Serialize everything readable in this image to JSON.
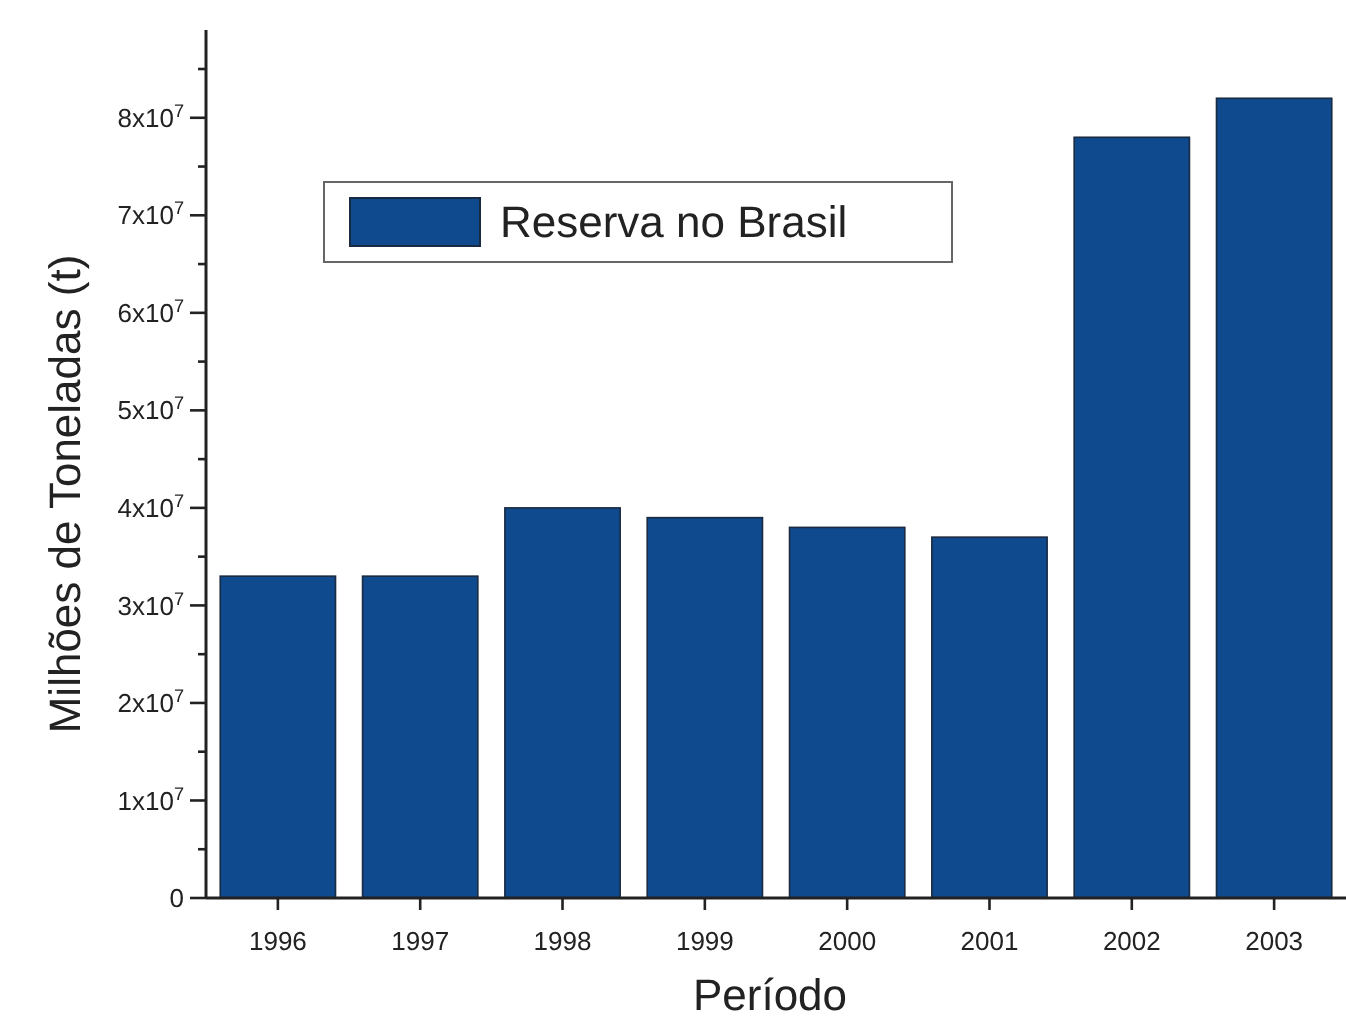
{
  "chart_data": {
    "type": "bar",
    "xlabel": "Período",
    "ylabel": "Milhões de Toneladas (t)",
    "categories": [
      "1996",
      "1997",
      "1998",
      "1999",
      "2000",
      "2001",
      "2002",
      "2003"
    ],
    "series": [
      {
        "name": "Reserva no Brasil",
        "color": "#0f4a8f",
        "values": [
          33000000,
          33000000,
          40000000,
          39000000,
          38000000,
          37000000,
          78000000,
          82000000
        ]
      }
    ],
    "ylim": [
      0,
      89000000
    ],
    "yticks": [
      0,
      {
        "value": 5000000,
        "label": null
      },
      {
        "value": 10000000,
        "label": "1x10$^{7}$"
      },
      {
        "value": 15000000,
        "label": null
      },
      {
        "value": 20000000,
        "label": "2x10$^{7}$"
      },
      {
        "value": 25000000,
        "label": null
      },
      {
        "value": 30000000,
        "label": "3x10$^{7}$"
      },
      {
        "value": 35000000,
        "label": null
      },
      {
        "value": 40000000,
        "label": "4x10$^{7}$"
      },
      {
        "value": 45000000,
        "label": null
      },
      {
        "value": 50000000,
        "label": "5x10$^{7}$"
      },
      {
        "value": 55000000,
        "label": null
      },
      {
        "value": 60000000,
        "label": "6x10$^{7}$"
      },
      {
        "value": 65000000,
        "label": null
      },
      {
        "value": 70000000,
        "label": "7x10$^{7}$"
      },
      {
        "value": 75000000,
        "label": null
      },
      {
        "value": 80000000,
        "label": "8x10$^{7}$"
      },
      {
        "value": 85000000,
        "label": null
      }
    ],
    "legend": "top left",
    "grid": false
  }
}
